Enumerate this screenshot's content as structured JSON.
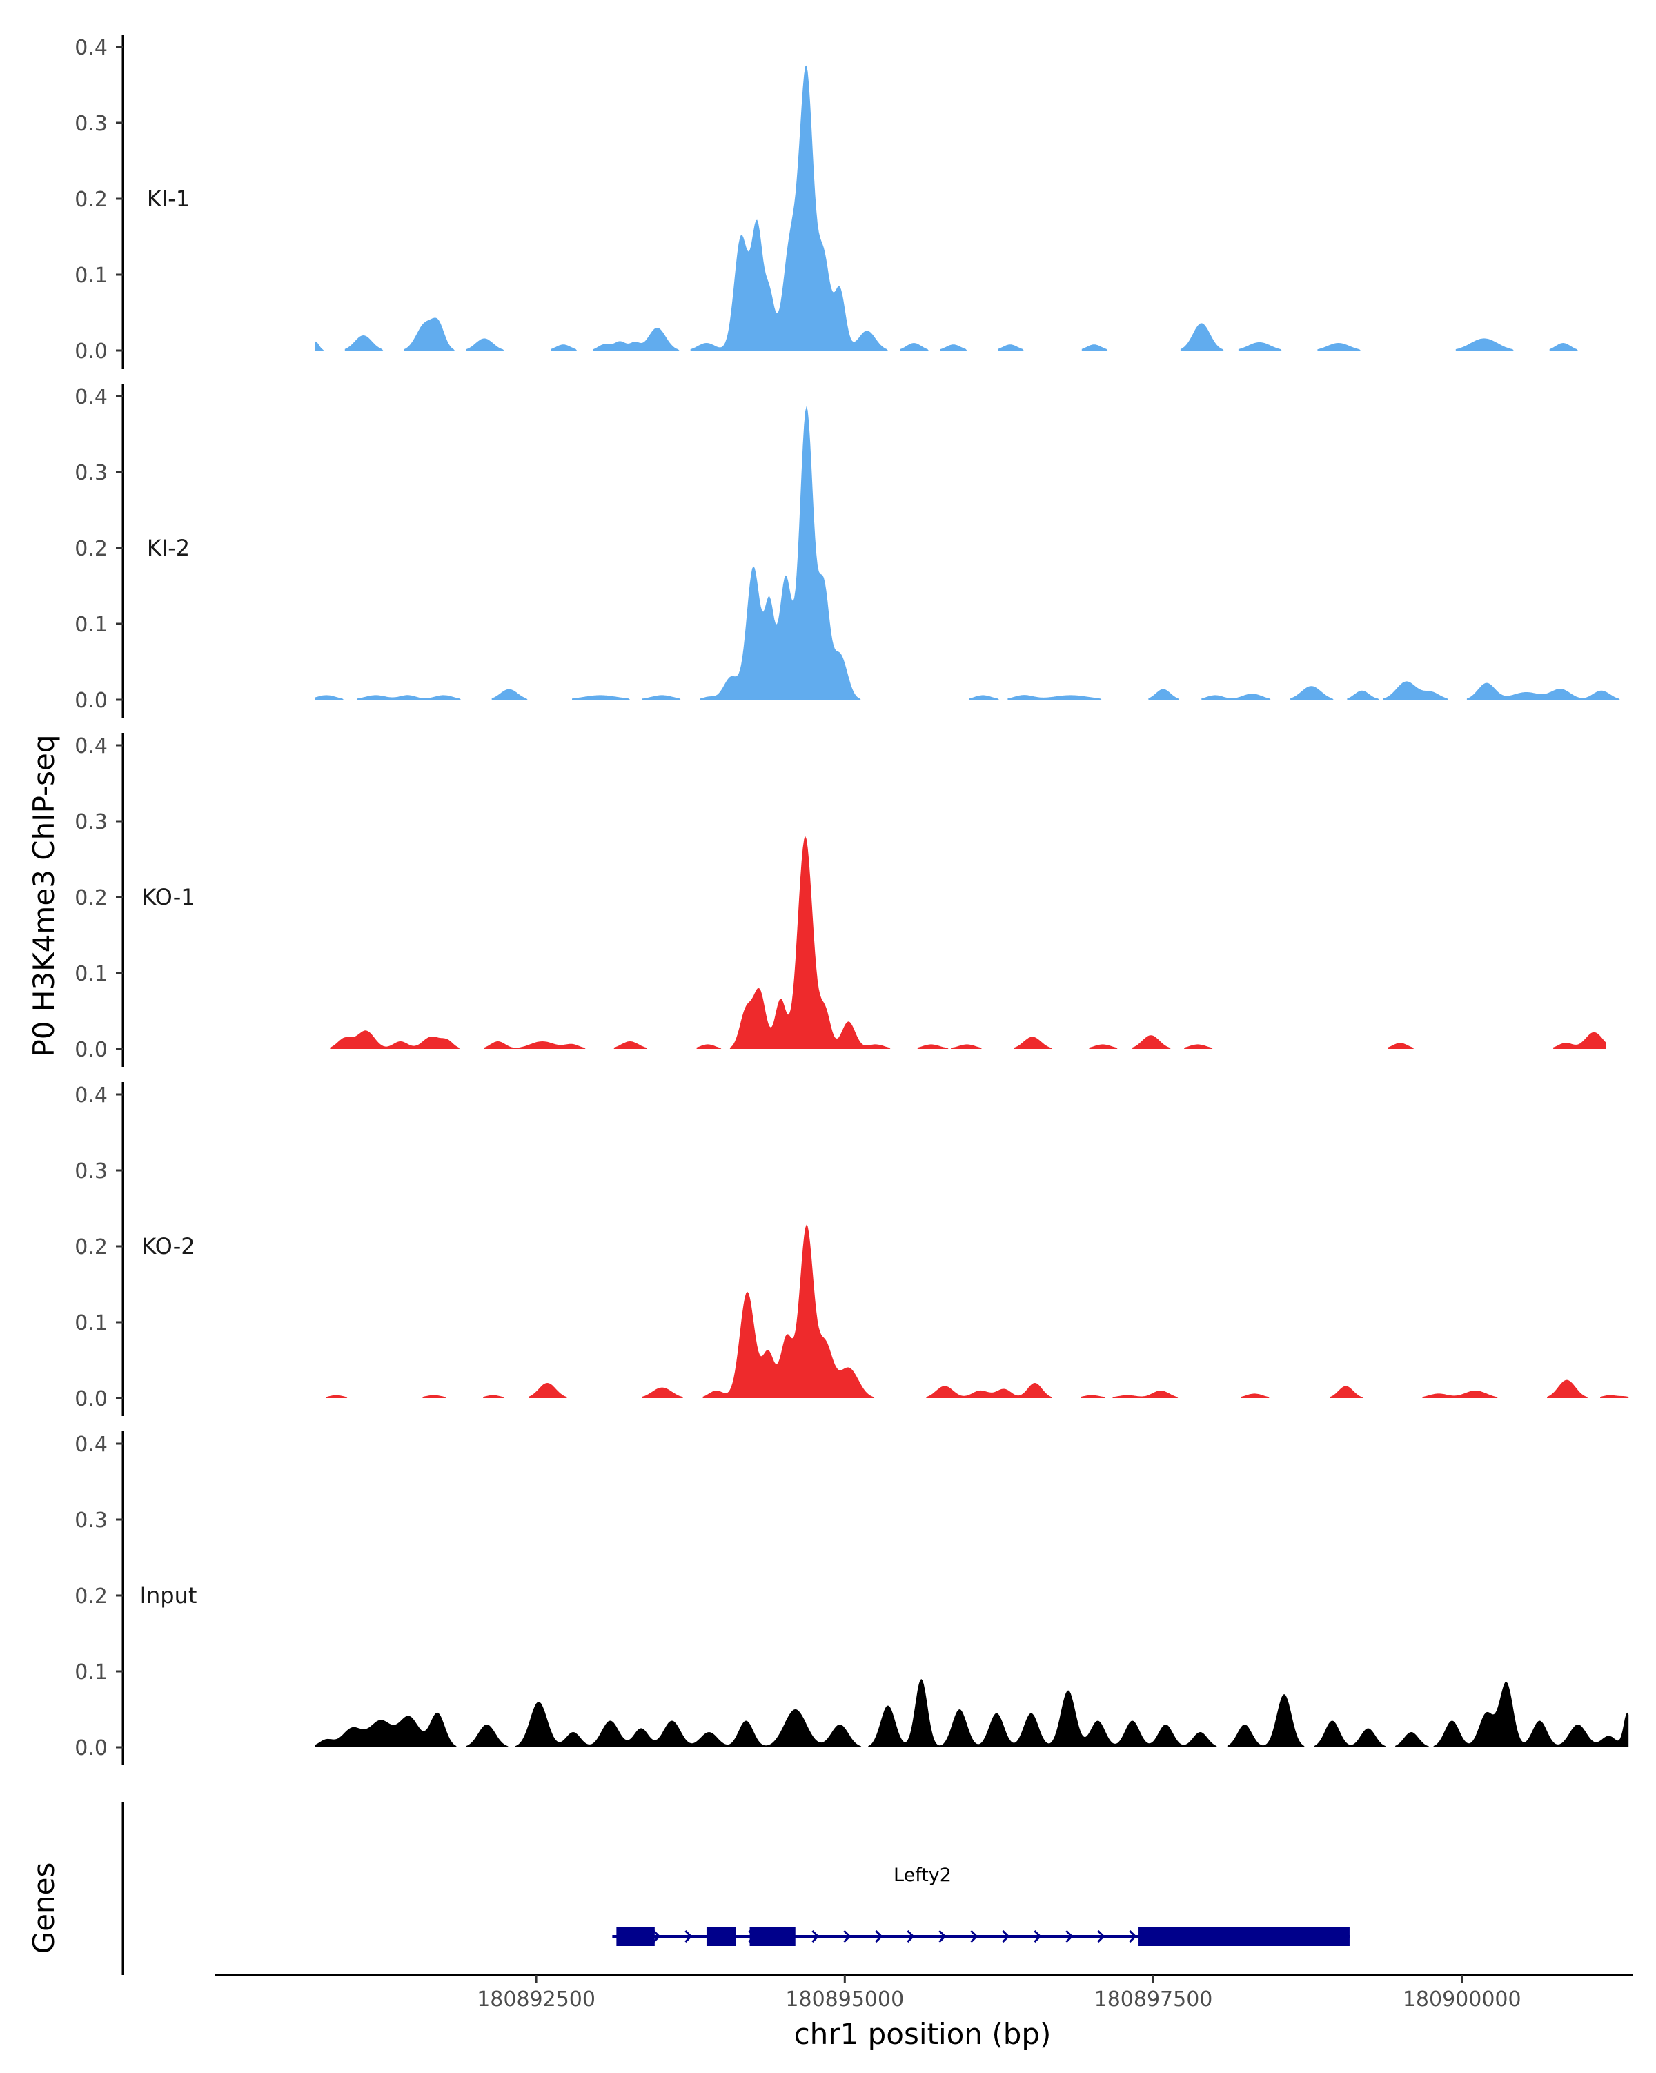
{
  "chart_data": {
    "type": "area",
    "ylabel": "P0 H3K4me3 ChIP-seq",
    "xlabel": "chr1 position (bp)",
    "xlim": [
      180889900,
      180901360
    ],
    "ylim": [
      0,
      0.42
    ],
    "yticks": [
      0.0,
      0.1,
      0.2,
      0.3,
      0.4
    ],
    "ytick_labels": [
      "0.0",
      "0.1",
      "0.2",
      "0.3",
      "0.4"
    ],
    "xticks": [
      180892500,
      180895000,
      180897500,
      180900000
    ],
    "xtick_labels": [
      "180892500",
      "180895000",
      "180897500",
      "180900000"
    ],
    "grid": false,
    "legend": "none",
    "tracks": [
      {
        "name": "KI-1",
        "color": "#61ACEE",
        "peaks": [
          [
            180890710,
            0.012,
            30
          ],
          [
            180891100,
            0.02,
            70
          ],
          [
            180891600,
            0.035,
            70
          ],
          [
            180891710,
            0.03,
            50
          ],
          [
            180892080,
            0.016,
            70
          ],
          [
            180892720,
            0.008,
            60
          ],
          [
            180893050,
            0.008,
            50
          ],
          [
            180893180,
            0.012,
            50
          ],
          [
            180893300,
            0.01,
            40
          ],
          [
            180893480,
            0.03,
            70
          ],
          [
            180893880,
            0.01,
            70
          ],
          [
            180894160,
            0.15,
            55
          ],
          [
            180894290,
            0.16,
            45
          ],
          [
            180894390,
            0.07,
            40
          ],
          [
            180894560,
            0.14,
            60
          ],
          [
            180894690,
            0.36,
            55
          ],
          [
            180894830,
            0.12,
            50
          ],
          [
            180894960,
            0.08,
            45
          ],
          [
            180895180,
            0.026,
            70
          ],
          [
            180895560,
            0.01,
            60
          ],
          [
            180895880,
            0.008,
            60
          ],
          [
            180896340,
            0.008,
            60
          ],
          [
            180897020,
            0.008,
            60
          ],
          [
            180897890,
            0.036,
            70
          ],
          [
            180898360,
            0.011,
            90
          ],
          [
            180899000,
            0.01,
            90
          ],
          [
            180900180,
            0.016,
            110
          ],
          [
            180900820,
            0.01,
            60
          ]
        ],
        "fill_start": 180890710,
        "fill_end": 180901030
      },
      {
        "name": "KI-2",
        "color": "#61ACEE",
        "peaks": [
          [
            180890800,
            0.006,
            80
          ],
          [
            180891200,
            0.006,
            90
          ],
          [
            180891460,
            0.006,
            70
          ],
          [
            180891750,
            0.006,
            80
          ],
          [
            180892280,
            0.014,
            70
          ],
          [
            180893020,
            0.006,
            140
          ],
          [
            180893520,
            0.006,
            90
          ],
          [
            180893900,
            0.004,
            50
          ],
          [
            180894080,
            0.03,
            60
          ],
          [
            180894260,
            0.175,
            55
          ],
          [
            180894390,
            0.12,
            40
          ],
          [
            180894520,
            0.16,
            50
          ],
          [
            180894690,
            0.385,
            55
          ],
          [
            180894830,
            0.14,
            45
          ],
          [
            180894960,
            0.06,
            60
          ],
          [
            180896120,
            0.006,
            70
          ],
          [
            180896450,
            0.006,
            80
          ],
          [
            180896830,
            0.006,
            150
          ],
          [
            180897580,
            0.014,
            60
          ],
          [
            180898000,
            0.006,
            70
          ],
          [
            180898300,
            0.008,
            80
          ],
          [
            180898780,
            0.018,
            80
          ],
          [
            180899190,
            0.012,
            60
          ],
          [
            180899550,
            0.024,
            80
          ],
          [
            180899750,
            0.01,
            70
          ],
          [
            180900200,
            0.022,
            70
          ],
          [
            180900520,
            0.01,
            110
          ],
          [
            180900800,
            0.014,
            80
          ],
          [
            180901130,
            0.012,
            70
          ]
        ],
        "fill_start": 180890710,
        "fill_end": 180901350
      },
      {
        "name": "KO-1",
        "color": "#EE2A2C",
        "peaks": [
          [
            180890950,
            0.014,
            60
          ],
          [
            180891120,
            0.024,
            70
          ],
          [
            180891400,
            0.01,
            60
          ],
          [
            180891650,
            0.016,
            70
          ],
          [
            180891780,
            0.01,
            50
          ],
          [
            180892190,
            0.01,
            60
          ],
          [
            180892550,
            0.01,
            100
          ],
          [
            180892790,
            0.006,
            60
          ],
          [
            180893260,
            0.01,
            70
          ],
          [
            180893890,
            0.006,
            60
          ],
          [
            180894200,
            0.05,
            50
          ],
          [
            180894310,
            0.075,
            50
          ],
          [
            180894480,
            0.065,
            45
          ],
          [
            180894680,
            0.28,
            60
          ],
          [
            180894840,
            0.05,
            45
          ],
          [
            180895030,
            0.036,
            55
          ],
          [
            180895250,
            0.006,
            70
          ],
          [
            180895700,
            0.006,
            70
          ],
          [
            180895990,
            0.006,
            70
          ],
          [
            180896520,
            0.016,
            70
          ],
          [
            180897090,
            0.006,
            70
          ],
          [
            180897480,
            0.018,
            70
          ],
          [
            180897860,
            0.006,
            70
          ],
          [
            180899500,
            0.008,
            60
          ],
          [
            180900840,
            0.008,
            60
          ],
          [
            180901070,
            0.022,
            70
          ]
        ],
        "fill_start": 180890710,
        "fill_end": 180901170
      },
      {
        "name": "KO-2",
        "color": "#EE2A2C",
        "peaks": [
          [
            180890880,
            0.004,
            60
          ],
          [
            180891670,
            0.004,
            70
          ],
          [
            180892150,
            0.004,
            60
          ],
          [
            180892590,
            0.02,
            70
          ],
          [
            180893520,
            0.014,
            80
          ],
          [
            180893960,
            0.01,
            60
          ],
          [
            180894210,
            0.14,
            60
          ],
          [
            180894380,
            0.06,
            50
          ],
          [
            180894530,
            0.08,
            50
          ],
          [
            180894690,
            0.225,
            55
          ],
          [
            180894840,
            0.07,
            60
          ],
          [
            180895030,
            0.04,
            80
          ],
          [
            180895810,
            0.016,
            70
          ],
          [
            180896100,
            0.01,
            70
          ],
          [
            180896290,
            0.012,
            60
          ],
          [
            180896540,
            0.02,
            60
          ],
          [
            180897000,
            0.004,
            70
          ],
          [
            180897290,
            0.004,
            80
          ],
          [
            180897560,
            0.01,
            70
          ],
          [
            180898320,
            0.006,
            70
          ],
          [
            180899060,
            0.016,
            60
          ],
          [
            180899810,
            0.006,
            80
          ],
          [
            180900110,
            0.01,
            90
          ],
          [
            180900850,
            0.024,
            70
          ],
          [
            180901200,
            0.004,
            60
          ],
          [
            180901320,
            0.002,
            40
          ]
        ],
        "fill_start": 180890710,
        "fill_end": 180901350
      },
      {
        "name": "Input",
        "color": "#000000",
        "peaks": [
          [
            180890800,
            0.01,
            60
          ],
          [
            180891010,
            0.025,
            80
          ],
          [
            180891240,
            0.035,
            90
          ],
          [
            180891470,
            0.04,
            80
          ],
          [
            180891700,
            0.045,
            60
          ],
          [
            180892100,
            0.03,
            70
          ],
          [
            180892520,
            0.06,
            70
          ],
          [
            180892800,
            0.02,
            60
          ],
          [
            180893100,
            0.035,
            70
          ],
          [
            180893350,
            0.025,
            60
          ],
          [
            180893600,
            0.035,
            70
          ],
          [
            180893900,
            0.02,
            70
          ],
          [
            180894200,
            0.035,
            60
          ],
          [
            180894600,
            0.05,
            90
          ],
          [
            180894960,
            0.03,
            70
          ],
          [
            180895350,
            0.055,
            60
          ],
          [
            180895620,
            0.09,
            50
          ],
          [
            180895930,
            0.05,
            60
          ],
          [
            180896230,
            0.045,
            60
          ],
          [
            180896510,
            0.045,
            60
          ],
          [
            180896810,
            0.075,
            60
          ],
          [
            180897050,
            0.035,
            60
          ],
          [
            180897330,
            0.035,
            60
          ],
          [
            180897600,
            0.03,
            60
          ],
          [
            180897880,
            0.02,
            60
          ],
          [
            180898240,
            0.03,
            60
          ],
          [
            180898560,
            0.07,
            60
          ],
          [
            180898950,
            0.035,
            60
          ],
          [
            180899240,
            0.025,
            60
          ],
          [
            180899590,
            0.02,
            60
          ],
          [
            180899920,
            0.035,
            60
          ],
          [
            180900200,
            0.045,
            60
          ],
          [
            180900360,
            0.085,
            55
          ],
          [
            180900630,
            0.035,
            60
          ],
          [
            180900940,
            0.03,
            70
          ],
          [
            180901190,
            0.015,
            60
          ],
          [
            180901340,
            0.045,
            30
          ]
        ],
        "fill_start": 180890710,
        "fill_end": 180901350
      }
    ],
    "genes_track": {
      "label": "Genes",
      "gene_name": "Lefty2",
      "color": "#00008B",
      "start": 180893150,
      "end": 180899090,
      "strand": "+",
      "exons": [
        [
          180893150,
          180893460
        ],
        [
          180893880,
          180894120
        ],
        [
          180894230,
          180894600
        ],
        [
          180897380,
          180899090
        ]
      ]
    }
  }
}
